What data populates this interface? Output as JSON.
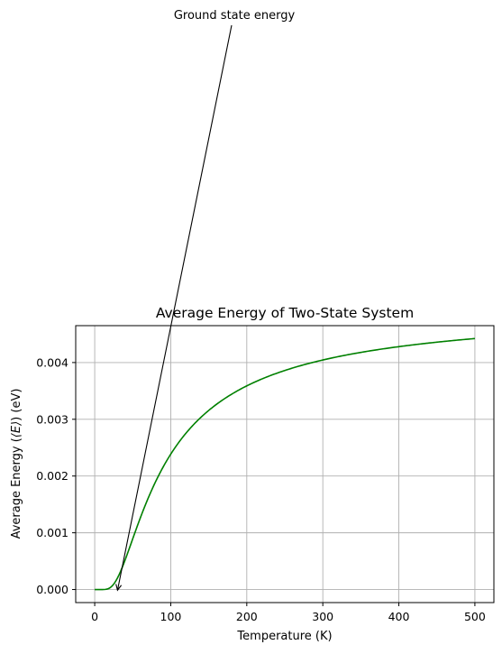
{
  "chart_data": {
    "type": "line",
    "title": "Average Energy of Two-State System",
    "xlabel": "Temperature (K)",
    "ylabel_prefix": "Average Energy (",
    "ylabel_symbol": "⟨E⟩",
    "ylabel_suffix": ") (eV)",
    "xlim": [
      -25,
      525
    ],
    "ylim": [
      -0.00023,
      0.00465
    ],
    "x_ticks": [
      0,
      100,
      200,
      300,
      400,
      500
    ],
    "x_tick_labels": [
      "0",
      "100",
      "200",
      "300",
      "400",
      "500"
    ],
    "y_ticks": [
      0,
      0.001,
      0.002,
      0.003,
      0.004
    ],
    "y_tick_labels": [
      "0.000",
      "0.001",
      "0.002",
      "0.003",
      "0.004"
    ],
    "grid": true,
    "series": [
      {
        "model": "two_state_average_energy",
        "energy_gap_eV": 0.01,
        "boltzmann_eV_per_K": 8.617e-05,
        "color": "#008000",
        "x": [
          1,
          10,
          20,
          30,
          40,
          50,
          60,
          80,
          100,
          125,
          150,
          175,
          200,
          250,
          300,
          350,
          400,
          450,
          500
        ],
        "y": [
          0,
          0,
          1e-05,
          0.00021,
          0.00052,
          0.00086,
          0.00118,
          0.00186,
          0.00238,
          0.00289,
          0.00324,
          0.00349,
          0.0037,
          0.00384,
          0.00405,
          0.00416,
          0.00426,
          0.00433,
          0.00441
        ]
      }
    ],
    "annotation": {
      "text": "Ground state energy",
      "target_x": 30,
      "target_y": 0.00021
    }
  }
}
